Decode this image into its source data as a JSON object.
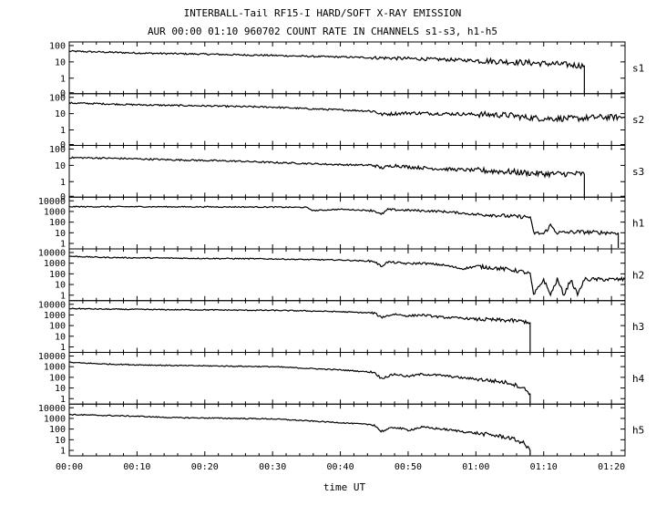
{
  "title": "INTERBALL-Tail RF15-I HARD/SOFT X-RAY EMISSION",
  "subtitle": "AUR 00:00 01:10 960702  COUNT RATE IN CHANNELS s1-s3, h1-h5",
  "chart_data": {
    "type": "line",
    "xlabel": "time UT",
    "x_unit": "minutes UT",
    "xlim": [
      0,
      82
    ],
    "x_ticks": [
      "00:00",
      "00:10",
      "00:20",
      "00:30",
      "00:40",
      "00:50",
      "01:00",
      "01:10",
      "01:20"
    ],
    "y_scale": "log",
    "grid": false,
    "panels": [
      {
        "name": "s1",
        "ylim": [
          0,
          100
        ],
        "y_ticks": [
          "100",
          "10",
          "1",
          "0"
        ],
        "points": [
          [
            0,
            45
          ],
          [
            5,
            40
          ],
          [
            10,
            35
          ],
          [
            15,
            32
          ],
          [
            20,
            30
          ],
          [
            25,
            27
          ],
          [
            30,
            25
          ],
          [
            35,
            22
          ],
          [
            40,
            20
          ],
          [
            45,
            18
          ],
          [
            50,
            16
          ],
          [
            55,
            14
          ],
          [
            60,
            12
          ],
          [
            65,
            10
          ],
          [
            70,
            8
          ],
          [
            73,
            7
          ],
          [
            75,
            6
          ],
          [
            76,
            6
          ]
        ],
        "drop_at": 76
      },
      {
        "name": "s2",
        "ylim": [
          0,
          100
        ],
        "y_ticks": [
          "100",
          "10",
          "1",
          "0"
        ],
        "points": [
          [
            0,
            45
          ],
          [
            5,
            40
          ],
          [
            10,
            35
          ],
          [
            15,
            32
          ],
          [
            20,
            30
          ],
          [
            25,
            27
          ],
          [
            30,
            25
          ],
          [
            35,
            20
          ],
          [
            40,
            17
          ],
          [
            45,
            14
          ],
          [
            46,
            9
          ],
          [
            50,
            11
          ],
          [
            55,
            10
          ],
          [
            60,
            9
          ],
          [
            65,
            8
          ],
          [
            67,
            6
          ],
          [
            70,
            5
          ],
          [
            75,
            5
          ],
          [
            78,
            6
          ],
          [
            82,
            6
          ]
        ]
      },
      {
        "name": "s3",
        "ylim": [
          0,
          100
        ],
        "y_ticks": [
          "100",
          "10",
          "1",
          "0"
        ],
        "points": [
          [
            0,
            30
          ],
          [
            5,
            28
          ],
          [
            10,
            25
          ],
          [
            15,
            22
          ],
          [
            20,
            20
          ],
          [
            25,
            18
          ],
          [
            30,
            15
          ],
          [
            35,
            13
          ],
          [
            40,
            11
          ],
          [
            45,
            10
          ],
          [
            46,
            7
          ],
          [
            48,
            10
          ],
          [
            50,
            8
          ],
          [
            55,
            6
          ],
          [
            60,
            5
          ],
          [
            65,
            4
          ],
          [
            70,
            3
          ],
          [
            75,
            3
          ],
          [
            76,
            3
          ]
        ],
        "drop_at": 76
      },
      {
        "name": "h1",
        "ylim": [
          0,
          10000
        ],
        "y_ticks": [
          "10000",
          "1000",
          "100",
          "10",
          "1"
        ],
        "points": [
          [
            0,
            2800
          ],
          [
            10,
            2800
          ],
          [
            20,
            2700
          ],
          [
            30,
            2600
          ],
          [
            35,
            2400
          ],
          [
            36,
            1200
          ],
          [
            40,
            1600
          ],
          [
            45,
            1200
          ],
          [
            46,
            500
          ],
          [
            47,
            1500
          ],
          [
            50,
            1300
          ],
          [
            55,
            1000
          ],
          [
            58,
            700
          ],
          [
            60,
            500
          ],
          [
            62,
            500
          ],
          [
            65,
            350
          ],
          [
            68,
            300
          ],
          [
            68.5,
            10
          ],
          [
            70,
            8
          ],
          [
            71,
            50
          ],
          [
            72,
            10
          ],
          [
            75,
            12
          ],
          [
            80,
            10
          ],
          [
            81,
            10
          ]
        ],
        "drop_at": 81
      },
      {
        "name": "h2",
        "ylim": [
          0,
          10000
        ],
        "y_ticks": [
          "10000",
          "1000",
          "100",
          "10",
          "1"
        ],
        "points": [
          [
            0,
            4500
          ],
          [
            5,
            3500
          ],
          [
            10,
            3200
          ],
          [
            15,
            3000
          ],
          [
            20,
            2800
          ],
          [
            25,
            2700
          ],
          [
            30,
            2500
          ],
          [
            35,
            2200
          ],
          [
            40,
            2000
          ],
          [
            45,
            1500
          ],
          [
            46,
            500
          ],
          [
            47,
            1300
          ],
          [
            50,
            900
          ],
          [
            52,
            1000
          ],
          [
            55,
            700
          ],
          [
            58,
            300
          ],
          [
            60,
            500
          ],
          [
            62,
            400
          ],
          [
            65,
            250
          ],
          [
            67,
            150
          ],
          [
            68,
            100
          ],
          [
            68.5,
            1
          ],
          [
            70,
            30
          ],
          [
            71,
            1
          ],
          [
            72,
            30
          ],
          [
            73,
            1
          ],
          [
            74,
            30
          ],
          [
            75,
            1
          ],
          [
            76,
            30
          ],
          [
            82,
            30
          ]
        ]
      },
      {
        "name": "h3",
        "ylim": [
          0,
          10000
        ],
        "y_ticks": [
          "10000",
          "1000",
          "100",
          "10",
          "1"
        ],
        "points": [
          [
            0,
            4000
          ],
          [
            5,
            3500
          ],
          [
            10,
            3300
          ],
          [
            15,
            3100
          ],
          [
            20,
            3000
          ],
          [
            25,
            2800
          ],
          [
            30,
            2700
          ],
          [
            35,
            2400
          ],
          [
            40,
            2000
          ],
          [
            45,
            1500
          ],
          [
            46,
            600
          ],
          [
            48,
            1200
          ],
          [
            50,
            800
          ],
          [
            52,
            1000
          ],
          [
            55,
            600
          ],
          [
            58,
            500
          ],
          [
            60,
            400
          ],
          [
            62,
            350
          ],
          [
            65,
            300
          ],
          [
            67,
            250
          ],
          [
            68,
            200
          ]
        ],
        "drop_at": 68
      },
      {
        "name": "h4",
        "ylim": [
          0,
          10000
        ],
        "y_ticks": [
          "10000",
          "1000",
          "100",
          "10",
          "1"
        ],
        "points": [
          [
            0,
            2500
          ],
          [
            5,
            1800
          ],
          [
            10,
            1500
          ],
          [
            15,
            1300
          ],
          [
            20,
            1200
          ],
          [
            25,
            1100
          ],
          [
            30,
            1000
          ],
          [
            35,
            700
          ],
          [
            40,
            500
          ],
          [
            45,
            300
          ],
          [
            46,
            80
          ],
          [
            48,
            200
          ],
          [
            50,
            120
          ],
          [
            52,
            200
          ],
          [
            55,
            150
          ],
          [
            58,
            90
          ],
          [
            60,
            70
          ],
          [
            62,
            50
          ],
          [
            65,
            30
          ],
          [
            67,
            10
          ],
          [
            68,
            3
          ]
        ],
        "drop_at": 68
      },
      {
        "name": "h5",
        "ylim": [
          0,
          10000
        ],
        "y_ticks": [
          "10000",
          "1000",
          "100",
          "10",
          "1"
        ],
        "points": [
          [
            0,
            2300
          ],
          [
            5,
            1900
          ],
          [
            10,
            1600
          ],
          [
            15,
            1200
          ],
          [
            20,
            1100
          ],
          [
            25,
            1000
          ],
          [
            30,
            900
          ],
          [
            35,
            600
          ],
          [
            40,
            400
          ],
          [
            45,
            250
          ],
          [
            46,
            60
          ],
          [
            48,
            150
          ],
          [
            50,
            80
          ],
          [
            52,
            150
          ],
          [
            55,
            100
          ],
          [
            58,
            60
          ],
          [
            60,
            40
          ],
          [
            62,
            30
          ],
          [
            65,
            15
          ],
          [
            67,
            5
          ],
          [
            68,
            1
          ]
        ],
        "drop_at": 68
      }
    ]
  }
}
